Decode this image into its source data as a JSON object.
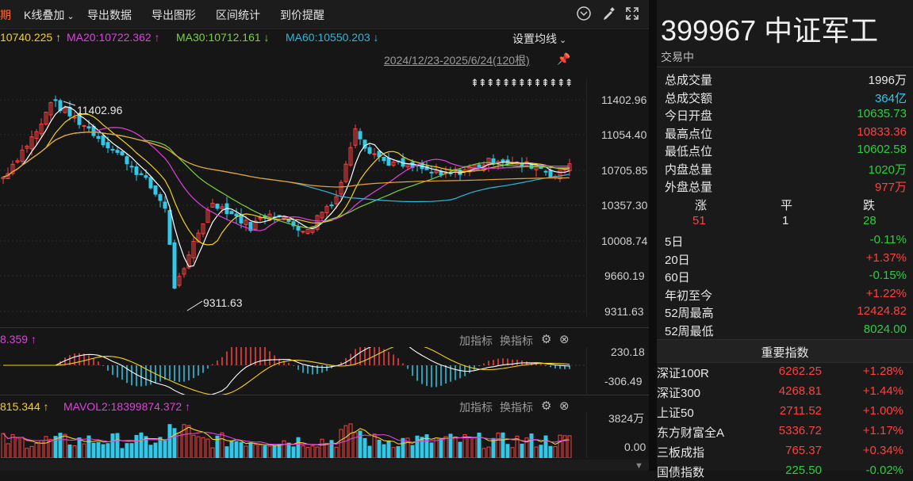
{
  "toolbar": {
    "period_label": "期",
    "overlay_label": "K线叠加",
    "export_data": "导出数据",
    "export_chart": "导出图形",
    "range_stats": "区间统计",
    "price_alert": "到价提醒"
  },
  "ma_line": {
    "ma10": "10740.225",
    "ma20": "MA20:10722.362",
    "ma30": "MA30:10712.161",
    "ma60": "MA60:10550.203",
    "settings": "设置均线"
  },
  "date_range": "2024/12/23-2025/6/24(120根)",
  "price_axis": [
    "11402.96",
    "11054.40",
    "10705.85",
    "10357.30",
    "10008.74",
    "9660.19",
    "9311.63"
  ],
  "annotations": {
    "high": "11402.96",
    "low": "9311.63"
  },
  "macd_panel": {
    "value_label": "8.359",
    "add_indicator": "加指标",
    "switch_indicator": "换指标",
    "axis_top": "230.18",
    "axis_bottom": "-306.49"
  },
  "vol_panel": {
    "value_label": "815.344",
    "mavol2": "MAVOL2:18399874.372",
    "add_indicator": "加指标",
    "switch_indicator": "换指标",
    "axis_top": "3824万",
    "axis_bottom": "0.00"
  },
  "quote": {
    "title": "399967 中证军工",
    "status": "交易中",
    "rows": [
      {
        "label": "总成交量",
        "value": "1996万",
        "color": "#e8e8e8"
      },
      {
        "label": "总成交额",
        "value": "364亿",
        "color": "#33c8e8"
      },
      {
        "label": "今日开盘",
        "value": "10635.73",
        "color": "#2ecc40"
      },
      {
        "label": "最高点位",
        "value": "10833.36",
        "color": "#ff4040"
      },
      {
        "label": "最低点位",
        "value": "10602.58",
        "color": "#2ecc40"
      },
      {
        "label": "内盘总量",
        "value": "1020万",
        "color": "#2ecc40"
      },
      {
        "label": "外盘总量",
        "value": "977万",
        "color": "#ff4040"
      }
    ],
    "breadth": {
      "up_label": "涨",
      "flat_label": "平",
      "down_label": "跌",
      "up": "51",
      "flat": "1",
      "down": "28"
    },
    "perf": [
      {
        "label": "5日",
        "value": "-0.11%",
        "color": "#2ecc40"
      },
      {
        "label": "20日",
        "value": "+1.37%",
        "color": "#ff4040"
      },
      {
        "label": "60日",
        "value": "-0.15%",
        "color": "#2ecc40"
      },
      {
        "label": "年初至今",
        "value": "+1.22%",
        "color": "#ff4040"
      },
      {
        "label": "52周最高",
        "value": "12424.82",
        "color": "#ff4040"
      },
      {
        "label": "52周最低",
        "value": "8024.00",
        "color": "#2ecc40"
      }
    ]
  },
  "key_indices": {
    "header": "重要指数",
    "items": [
      {
        "name": "深证100R",
        "price": "6262.25",
        "change": "+1.28%",
        "color": "#ff4040"
      },
      {
        "name": "深证300",
        "price": "4268.81",
        "change": "+1.44%",
        "color": "#ff4040"
      },
      {
        "name": "上证50",
        "price": "2711.52",
        "change": "+1.00%",
        "color": "#ff4040"
      },
      {
        "name": "东方财富全A",
        "price": "5336.72",
        "change": "+1.17%",
        "color": "#ff4040"
      },
      {
        "name": "三板成指",
        "price": "765.37",
        "change": "+0.34%",
        "color": "#ff4040"
      },
      {
        "name": "国债指数",
        "price": "225.50",
        "change": "-0.02%",
        "color": "#2ecc40"
      }
    ]
  },
  "colors": {
    "up": "#ff4040",
    "down": "#33c8e8",
    "ma5": "#ffffff",
    "ma10": "#f2d21b",
    "ma20": "#e040e0",
    "ma30": "#7ad13a",
    "ma60": "#33b5d8",
    "ma120": "#f0a030"
  }
}
